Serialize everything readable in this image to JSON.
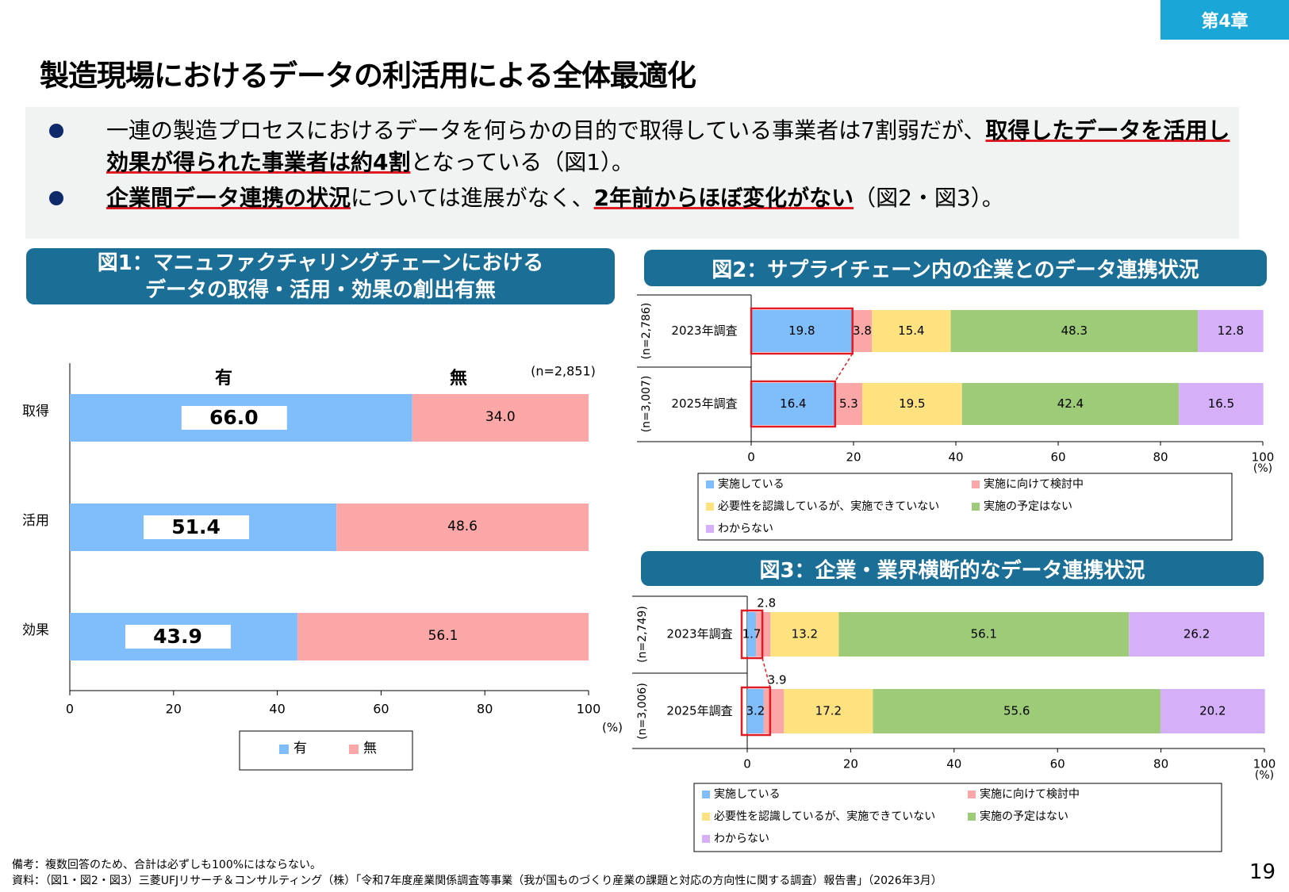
{
  "chapter": "第4章",
  "title": "製造現場におけるデータの利活用による全体最適化",
  "bullets": [
    {
      "pre": "一連の製造プロセスにおけるデータを何らかの目的で取得している事業者は7割弱だが、",
      "hl1": "取得したデータを活用し効果が得られた事業者は約4割",
      "post": "となっている（図1）。"
    },
    {
      "pre": "",
      "hl1": "企業間データ連携の状況",
      "mid": "については進展がなく、",
      "hl2": "2年前からほぼ変化がない",
      "post": "（図2・図3）。"
    }
  ],
  "figure_titles": {
    "fig1_line1": "図1：マニュファクチャリングチェーンにおける",
    "fig1_line2": "データの取得・活用・効果の創出有無",
    "fig2": "図2：サプライチェーン内の企業とのデータ連携状況",
    "fig3": "図3：企業・業界横断的なデータ連携状況"
  },
  "colors": {
    "blue": "#7fbdfb",
    "pink": "#fba7a7",
    "yellow": "#fde27f",
    "green": "#9dcb78",
    "purple": "#d5b0f9",
    "red": "#e01b24",
    "header": "#1b6f96"
  },
  "chart_data": [
    {
      "id": "fig1",
      "type": "bar",
      "orientation": "horizontal",
      "stacked": true,
      "n_label": "(n=2,851)",
      "categories": [
        "取得",
        "活用",
        "効果"
      ],
      "series": [
        {
          "name": "有",
          "values": [
            66.0,
            51.4,
            43.9
          ]
        },
        {
          "name": "無",
          "values": [
            34.0,
            48.6,
            56.1
          ]
        }
      ],
      "xlim": [
        0,
        100
      ],
      "xticks": [
        "0",
        "20",
        "40",
        "60",
        "80",
        "100"
      ],
      "unit": "(%)",
      "legend": "bottom"
    },
    {
      "id": "fig2",
      "type": "bar",
      "orientation": "horizontal",
      "stacked": true,
      "categories": [
        "2023年調査",
        "2025年調査"
      ],
      "n_labels": [
        "(n=2,786)",
        "(n=3,007)"
      ],
      "series": [
        {
          "name": "実施している",
          "values": [
            19.8,
            16.4
          ]
        },
        {
          "name": "実施に向けて検討中",
          "values": [
            3.8,
            5.3
          ]
        },
        {
          "name": "必要性を認識しているが、実施できていない",
          "values": [
            15.4,
            19.5
          ]
        },
        {
          "name": "実施の予定はない",
          "values": [
            48.3,
            42.4
          ]
        },
        {
          "name": "わからない",
          "values": [
            12.8,
            16.5
          ]
        }
      ],
      "xlim": [
        0,
        100
      ],
      "xticks": [
        "0",
        "20",
        "40",
        "60",
        "80",
        "100"
      ],
      "unit": "(%)",
      "legend": "bottom"
    },
    {
      "id": "fig3",
      "type": "bar",
      "orientation": "horizontal",
      "stacked": true,
      "categories": [
        "2023年調査",
        "2025年調査"
      ],
      "n_labels": [
        "(n=2,749)",
        "(n=3,006)"
      ],
      "series": [
        {
          "name": "実施している",
          "values": [
            1.7,
            3.2
          ]
        },
        {
          "name": "実施に向けて検討中",
          "values": [
            2.8,
            3.9
          ]
        },
        {
          "name": "必要性を認識しているが、実施できていない",
          "values": [
            13.2,
            17.2
          ]
        },
        {
          "name": "実施の予定はない",
          "values": [
            56.1,
            55.6
          ]
        },
        {
          "name": "わからない",
          "values": [
            26.2,
            20.2
          ]
        }
      ],
      "xlim": [
        0,
        100
      ],
      "xticks": [
        "0",
        "20",
        "40",
        "60",
        "80",
        "100"
      ],
      "unit": "(%)",
      "legend": "bottom"
    }
  ],
  "notes": {
    "remark": "備考：複数回答のため、合計は必ずしも100%にはならない。",
    "source": "資料：（図1・図2・図3）三菱UFJリサーチ＆コンサルティング（株）「令和7年度産業関係調査等事業（我が国ものづくり産業の課題と対応の方向性に関する調査）報告書」（2026年3月）"
  },
  "page_number": "19"
}
